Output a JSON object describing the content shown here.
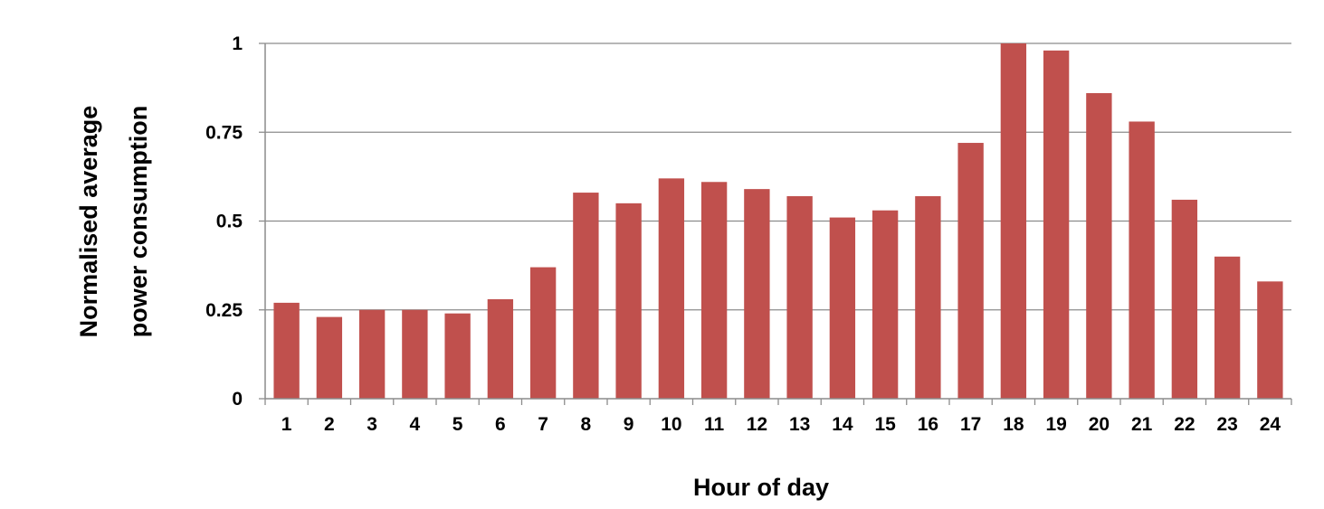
{
  "chart_data": {
    "type": "bar",
    "title": "",
    "xlabel": "Hour of day",
    "ylabel_lines": [
      "Normalised average",
      "power consumption"
    ],
    "ylim": [
      0,
      1
    ],
    "yticks": [
      0,
      0.25,
      0.5,
      0.75,
      1
    ],
    "ytick_labels": [
      "0",
      "0.25",
      "0.5",
      "0.75",
      "1"
    ],
    "grid": true,
    "legend": "none",
    "bar_color": "#C0504D",
    "categories": [
      "1",
      "2",
      "3",
      "4",
      "5",
      "6",
      "7",
      "8",
      "9",
      "10",
      "11",
      "12",
      "13",
      "14",
      "15",
      "16",
      "17",
      "18",
      "19",
      "20",
      "21",
      "22",
      "23",
      "24"
    ],
    "values": [
      0.27,
      0.23,
      0.25,
      0.25,
      0.24,
      0.28,
      0.37,
      0.58,
      0.55,
      0.62,
      0.61,
      0.59,
      0.57,
      0.51,
      0.53,
      0.57,
      0.72,
      1.0,
      0.98,
      0.86,
      0.78,
      0.56,
      0.4,
      0.33
    ]
  }
}
